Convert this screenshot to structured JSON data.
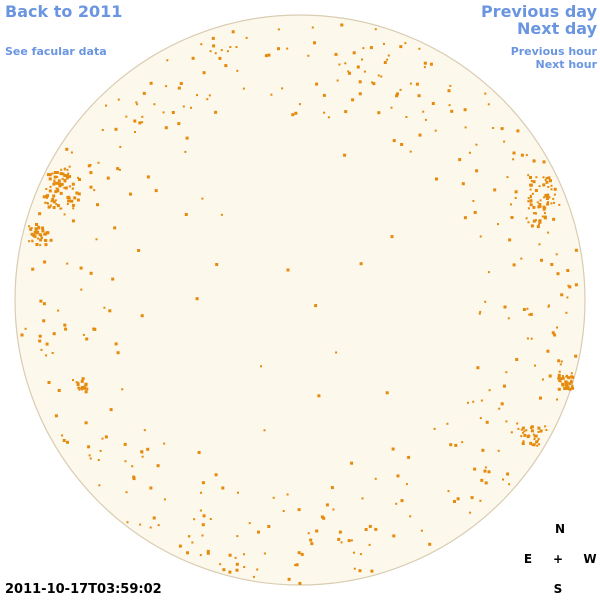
{
  "nav": {
    "back": "Back to 2011",
    "facular": "See facular data",
    "previous_day": "Previous day",
    "next_day": "Next day",
    "previous_hour": "Previous hour",
    "next_hour": "Next hour"
  },
  "timestamp": "2011-10-17T03:59:02",
  "compass": {
    "north": "N",
    "east": "E",
    "center": "+",
    "west": "W",
    "south": "S"
  }
}
